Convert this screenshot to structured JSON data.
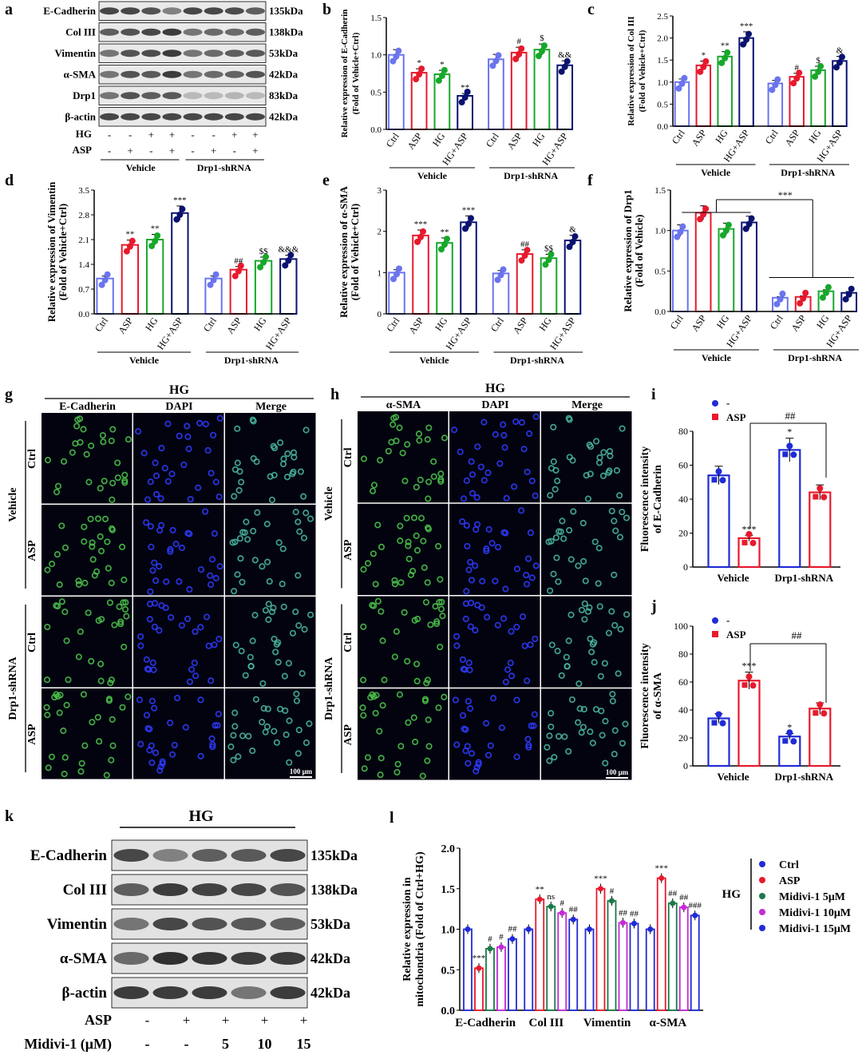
{
  "panel_letters": [
    "a",
    "b",
    "c",
    "d",
    "e",
    "f",
    "g",
    "h",
    "i",
    "j",
    "k",
    "l"
  ],
  "blot_a": {
    "rows": [
      {
        "name": "E-Cadherin",
        "kda": "135kDa",
        "intensity": [
          0.8,
          0.8,
          0.75,
          0.55,
          0.8,
          0.8,
          0.78,
          0.7
        ]
      },
      {
        "name": "Col III",
        "kda": "138kDa",
        "intensity": [
          0.7,
          0.75,
          0.8,
          0.85,
          0.6,
          0.65,
          0.65,
          0.7
        ]
      },
      {
        "name": "Vimentin",
        "kda": "53kDa",
        "intensity": [
          0.6,
          0.75,
          0.78,
          0.85,
          0.6,
          0.65,
          0.7,
          0.72
        ]
      },
      {
        "name": "α-SMA",
        "kda": "42kDa",
        "intensity": [
          0.6,
          0.75,
          0.72,
          0.85,
          0.6,
          0.65,
          0.68,
          0.75
        ]
      },
      {
        "name": "Drp1",
        "kda": "83kDa",
        "intensity": [
          0.6,
          0.75,
          0.7,
          0.72,
          0.3,
          0.3,
          0.32,
          0.3
        ]
      },
      {
        "name": "β-actin",
        "kda": "42kDa",
        "intensity": [
          0.8,
          0.8,
          0.8,
          0.8,
          0.8,
          0.8,
          0.8,
          0.8
        ]
      }
    ],
    "hg_label": "HG",
    "asp_label": "ASP",
    "hg_signs": [
      "-",
      "-",
      "+",
      "+",
      "-",
      "-",
      "+",
      "+"
    ],
    "asp_signs": [
      "-",
      "+",
      "-",
      "+",
      "-",
      "+",
      "-",
      "+"
    ],
    "group_labels": [
      "Vehicle",
      "Drp1-shRNA"
    ]
  },
  "chart_data": [
    {
      "panel": "b",
      "type": "bar",
      "ylabel": "Relative expression of E-Cadherin(Fold of Vehicle+Ctrl)",
      "categories": [
        "Ctrl",
        "ASP",
        "HG",
        "HG+ASP",
        "Ctrl",
        "ASP",
        "HG",
        "HG+ASP"
      ],
      "groups": [
        "Vehicle",
        "Drp1-shRNA"
      ],
      "ylim": [
        0,
        1.5
      ],
      "yticks": [
        "0.0",
        "0.5",
        "1.0",
        "1.5"
      ],
      "values": [
        1.0,
        0.76,
        0.74,
        0.45,
        0.94,
        1.03,
        1.07,
        0.86
      ],
      "sig": [
        "",
        "*",
        "*",
        "**",
        "",
        "#",
        "$",
        "&&"
      ]
    },
    {
      "panel": "c",
      "type": "bar",
      "ylabel": "Relative expression of Col III (Fold of Vehicle+Ctrl)",
      "categories": [
        "Ctrl",
        "ASP",
        "HG",
        "HG+ASP",
        "Ctrl",
        "ASP",
        "HG",
        "HG+ASP"
      ],
      "groups": [
        "Vehicle",
        "Drp1-shRNA"
      ],
      "ylim": [
        0,
        2.5
      ],
      "yticks": [
        "0.0",
        "0.5",
        "1.0",
        "1.5",
        "2.0",
        "2.5"
      ],
      "values": [
        1.0,
        1.38,
        1.58,
        2.0,
        0.97,
        1.12,
        1.27,
        1.48
      ],
      "sig": [
        "",
        "*",
        "**",
        "***",
        "",
        "#",
        "$",
        "&"
      ]
    },
    {
      "panel": "d",
      "type": "bar",
      "ylabel": "Relative expression of Vimentin (Fold of Vehicle+Ctrl)",
      "categories": [
        "Ctrl",
        "ASP",
        "HG",
        "HG+ASP",
        "Ctrl",
        "ASP",
        "HG",
        "HG+ASP"
      ],
      "groups": [
        "Vehicle",
        "Drp1-shRNA"
      ],
      "ylim": [
        0,
        3.5
      ],
      "yticks": [
        "0.0",
        "0.7",
        "1.4",
        "2.1",
        "2.8",
        "3.5"
      ],
      "values": [
        1.0,
        1.95,
        2.1,
        2.85,
        1.0,
        1.25,
        1.5,
        1.55
      ],
      "sig": [
        "",
        "**",
        "**",
        "***",
        "",
        "##",
        "$$",
        "&&&"
      ]
    },
    {
      "panel": "e",
      "type": "bar",
      "ylabel": "Relative expression of α-SMA (Fold of Vehicle+Ctrl)",
      "categories": [
        "Ctrl",
        "ASP",
        "HG",
        "HG+ASP",
        "Ctrl",
        "ASP",
        "HG",
        "HG+ASP"
      ],
      "groups": [
        "Vehicle",
        "Drp1-shRNA"
      ],
      "ylim": [
        0,
        3
      ],
      "yticks": [
        "0",
        "1",
        "2",
        "3"
      ],
      "values": [
        1.0,
        1.9,
        1.72,
        2.22,
        0.98,
        1.45,
        1.35,
        1.78
      ],
      "sig": [
        "",
        "***",
        "**",
        "***",
        "",
        "##",
        "$$",
        "&"
      ]
    },
    {
      "panel": "f",
      "type": "bar",
      "ylabel": "Relative expression of Drp1 (Fold of Vehicle)",
      "categories": [
        "Ctrl",
        "ASP",
        "HG",
        "HG+ASP",
        "Ctrl",
        "ASP",
        "HG",
        "HG+ASP"
      ],
      "groups": [
        "Vehicle",
        "Drp1-shRNA"
      ],
      "ylim": [
        0,
        1.5
      ],
      "yticks": [
        "0.0",
        "0.5",
        "1.0",
        "1.5"
      ],
      "values": [
        1.0,
        1.22,
        1.02,
        1.1,
        0.17,
        0.18,
        0.25,
        0.23
      ],
      "sig": [
        "",
        "",
        "",
        "",
        "",
        "",
        "",
        ""
      ],
      "bracket": "***"
    },
    {
      "panel": "i",
      "type": "bar",
      "ylabel": "Fluorescence intensity of E-Cadherin",
      "categories": [
        "Vehicle",
        "Drp1-shRNA"
      ],
      "ylim": [
        0,
        80
      ],
      "yticks": [
        "0",
        "20",
        "40",
        "60",
        "80"
      ],
      "series": [
        {
          "name": "-",
          "values": [
            54,
            69
          ]
        },
        {
          "name": "ASP",
          "values": [
            17,
            44
          ]
        }
      ],
      "sig": [
        "",
        "***",
        "*",
        ""
      ],
      "bracket": "##"
    },
    {
      "panel": "j",
      "type": "bar",
      "ylabel": "Fluorescence intensity of α-SMA",
      "categories": [
        "Vehicle",
        "Drp1-shRNA"
      ],
      "ylim": [
        0,
        100
      ],
      "yticks": [
        "0",
        "20",
        "40",
        "60",
        "80",
        "100"
      ],
      "series": [
        {
          "name": "-",
          "values": [
            34,
            21
          ]
        },
        {
          "name": "ASP",
          "values": [
            61,
            41
          ]
        }
      ],
      "sig": [
        "",
        "***",
        "*",
        ""
      ],
      "bracket": "##"
    },
    {
      "panel": "l",
      "type": "bar",
      "ylabel": "Relative expression in mitochondria (Fold of Ctrl+HG)",
      "categories": [
        "E-Cadherin",
        "Col III",
        "Vimentin",
        "α-SMA"
      ],
      "ylim": [
        0,
        2.0
      ],
      "yticks": [
        "0.0",
        "0.5",
        "1.0",
        "1.5",
        "2.0"
      ],
      "series": [
        {
          "name": "Ctrl",
          "values": [
            1.0,
            1.0,
            1.0,
            1.0
          ]
        },
        {
          "name": "ASP",
          "values": [
            0.52,
            1.37,
            1.5,
            1.63
          ]
        },
        {
          "name": "Midivi-1 5μM",
          "values": [
            0.76,
            1.28,
            1.35,
            1.32
          ]
        },
        {
          "name": "Midivi-1 10μM",
          "values": [
            0.78,
            1.2,
            1.08,
            1.27
          ]
        },
        {
          "name": "Midivi-1 15μM",
          "values": [
            0.88,
            1.12,
            1.07,
            1.17
          ]
        }
      ],
      "sig": [
        [
          "",
          "***",
          "#",
          "#",
          "##"
        ],
        [
          "",
          "**",
          "ns",
          "#",
          "##"
        ],
        [
          "",
          "***",
          "#",
          "##",
          "##"
        ],
        [
          "",
          "***",
          "##",
          "##",
          "###"
        ]
      ],
      "legend_side_label": "HG"
    }
  ],
  "micro_g": {
    "title": "HG",
    "columns": [
      "E-Cadherin",
      "DAPI",
      "Merge"
    ],
    "row_groups": [
      "Vehicle",
      "Drp1-shRNA"
    ],
    "rows": [
      "Ctrl",
      "ASP",
      "Ctrl",
      "ASP"
    ],
    "scale": "100 μm"
  },
  "micro_h": {
    "title": "HG",
    "columns": [
      "α-SMA",
      "DAPI",
      "Merge"
    ],
    "row_groups": [
      "Vehicle",
      "Drp1-shRNA"
    ],
    "rows": [
      "Ctrl",
      "ASP",
      "Ctrl",
      "ASP"
    ],
    "scale": "100 μm"
  },
  "legend_ij": [
    "-",
    "ASP"
  ],
  "blot_k": {
    "title": "HG",
    "rows": [
      {
        "name": "E-Cadherin",
        "kda": "135kDa"
      },
      {
        "name": "Col III",
        "kda": "138kDa"
      },
      {
        "name": "Vimentin",
        "kda": "53kDa"
      },
      {
        "name": "α-SMA",
        "kda": "42kDa"
      },
      {
        "name": "β-actin",
        "kda": "42kDa"
      }
    ],
    "asp_label": "ASP",
    "asp_signs": [
      "-",
      "+",
      "+",
      "+",
      "+"
    ],
    "midivi_label": "Midivi-1 (μM)",
    "midivi_vals": [
      "-",
      "-",
      "5",
      "10",
      "15"
    ]
  },
  "colors": {
    "blue": "#1f2bd6",
    "red": "#e8192c",
    "green": "#16a82a",
    "navy": "#0a1270",
    "lightblue": "#6a74ee",
    "darkgreen": "#1a7a4a",
    "purple": "#c42ad6"
  }
}
